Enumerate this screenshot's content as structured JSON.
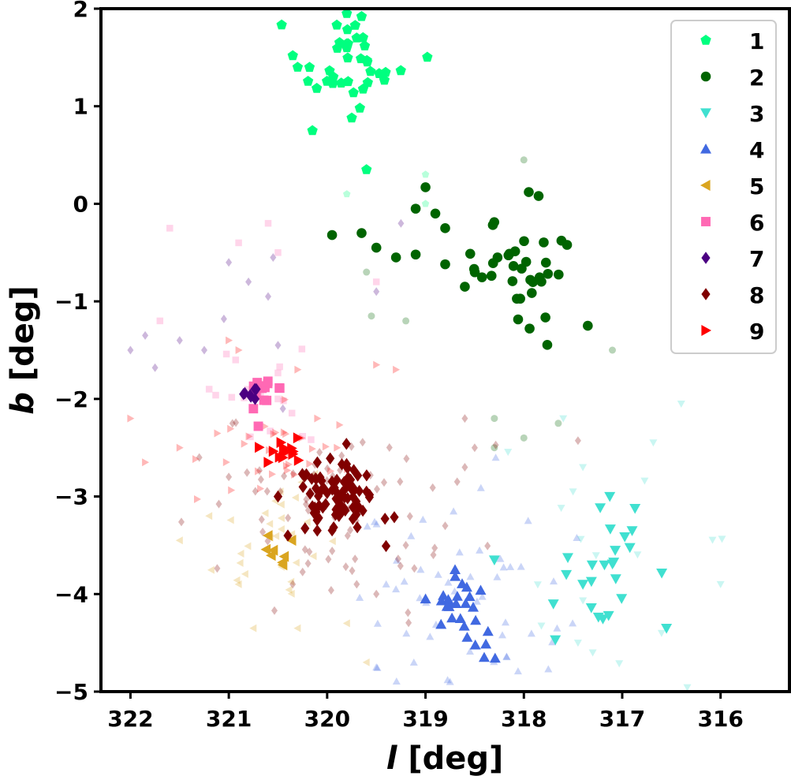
{
  "chart_data": {
    "type": "scatter",
    "title": "",
    "xlabel": "l [deg]",
    "xlabel_parts": {
      "var": "l",
      "unit": " [deg]"
    },
    "ylabel": "b [deg]",
    "ylabel_parts": {
      "var": "b",
      "unit": " [deg]"
    },
    "xlim": [
      322.3,
      315.3
    ],
    "ylim": [
      -5,
      2
    ],
    "x_inverted": true,
    "grid": false,
    "legend_position": "upper-right",
    "x_ticks": [
      {
        "value": 322,
        "label": "322"
      },
      {
        "value": 321,
        "label": "321"
      },
      {
        "value": 320,
        "label": "320"
      },
      {
        "value": 319,
        "label": "319"
      },
      {
        "value": 318,
        "label": "318"
      },
      {
        "value": 317,
        "label": "317"
      },
      {
        "value": 316,
        "label": "316"
      }
    ],
    "y_ticks": [
      {
        "value": 2,
        "label": "2"
      },
      {
        "value": 1,
        "label": "1"
      },
      {
        "value": 0,
        "label": "0"
      },
      {
        "value": -1,
        "label": "−1"
      },
      {
        "value": -2,
        "label": "−2"
      },
      {
        "value": -3,
        "label": "−3"
      },
      {
        "value": -4,
        "label": "−4"
      },
      {
        "value": -5,
        "label": "−5"
      }
    ],
    "series": [
      {
        "name": "1",
        "marker": "pentagon",
        "color": "#00ff7f",
        "center": [
          319.85,
          1.45
        ],
        "spread": [
          0.3,
          0.22
        ],
        "core_count": 34,
        "points": [
          [
            319.8,
            1.95
          ],
          [
            319.65,
            1.92
          ],
          [
            320.3,
            1.4
          ],
          [
            320.15,
            0.75
          ],
          [
            319.75,
            0.88
          ],
          [
            319.6,
            0.35
          ],
          [
            319.8,
            1.6
          ],
          [
            319.7,
            1.7
          ]
        ],
        "faint": [
          [
            319.8,
            0.1
          ],
          [
            319.0,
            0.3
          ],
          [
            318.9,
            -0.1
          ],
          [
            319.0,
            0.0
          ]
        ]
      },
      {
        "name": "2",
        "marker": "circle",
        "color": "#006400",
        "center": [
          318.05,
          -0.7
        ],
        "spread": [
          0.28,
          0.22
        ],
        "core_count": 34,
        "points": [
          [
            319.95,
            -0.32
          ],
          [
            319.65,
            -0.3
          ],
          [
            319.5,
            -0.45
          ],
          [
            319.3,
            -0.55
          ],
          [
            319.1,
            -0.05
          ],
          [
            319.0,
            0.17
          ],
          [
            318.9,
            -0.1
          ],
          [
            318.8,
            -0.25
          ],
          [
            319.1,
            -0.52
          ],
          [
            318.8,
            -0.62
          ],
          [
            318.6,
            -0.85
          ],
          [
            317.35,
            -1.25
          ],
          [
            317.85,
            0.08
          ],
          [
            317.95,
            0.12
          ]
        ],
        "faint": [
          [
            318.0,
            0.45
          ],
          [
            319.55,
            -1.15
          ],
          [
            319.2,
            -1.2
          ],
          [
            317.1,
            -1.5
          ],
          [
            318.3,
            -2.2
          ],
          [
            317.65,
            -2.25
          ],
          [
            318.0,
            -2.4
          ],
          [
            318.3,
            -2.5
          ],
          [
            319.6,
            -0.7
          ]
        ]
      },
      {
        "name": "3",
        "marker": "triangle-down",
        "color": "#40e0d0",
        "center": [
          317.05,
          -3.7
        ],
        "spread": [
          0.28,
          0.3
        ],
        "core_count": 22,
        "points": [
          [
            318.3,
            -3.65
          ],
          [
            317.7,
            -4.1
          ],
          [
            317.4,
            -3.9
          ],
          [
            316.55,
            -4.35
          ],
          [
            316.9,
            -3.35
          ]
        ],
        "faint": [
          [
            317.4,
            -2.7
          ],
          [
            317.5,
            -2.95
          ],
          [
            317.6,
            -2.2
          ],
          [
            316.4,
            -2.05
          ],
          [
            316.0,
            -3.9
          ],
          [
            317.45,
            -4.5
          ],
          [
            317.3,
            -4.6
          ],
          [
            316.6,
            -4.4
          ]
        ],
        "faint_count": 15
      },
      {
        "name": "4",
        "marker": "triangle-up",
        "color": "#4169e1",
        "center": [
          318.65,
          -4.25
        ],
        "spread": [
          0.18,
          0.22
        ],
        "core_count": 26,
        "points": [
          [
            319.0,
            -4.05
          ],
          [
            318.7,
            -3.75
          ]
        ],
        "faint": [
          [
            319.3,
            -3.95
          ],
          [
            319.4,
            -3.9
          ],
          [
            318.75,
            -4.9
          ],
          [
            319.5,
            -4.75
          ]
        ],
        "faint_count": 60
      },
      {
        "name": "5",
        "marker": "triangle-left",
        "color": "#daa520",
        "center": [
          320.5,
          -3.55
        ],
        "spread": [
          0.1,
          0.12
        ],
        "core_count": 6,
        "points": [
          [
            320.6,
            -3.4
          ],
          [
            320.45,
            -3.7
          ]
        ],
        "faint": [
          [
            321.5,
            -3.45
          ],
          [
            321.2,
            -3.2
          ],
          [
            320.9,
            -3.9
          ],
          [
            320.75,
            -4.35
          ],
          [
            320.3,
            -4.35
          ],
          [
            319.8,
            -4.3
          ],
          [
            319.6,
            -4.7
          ]
        ],
        "faint_count": 28
      },
      {
        "name": "6",
        "marker": "square",
        "color": "#ff69b4",
        "center": [
          320.65,
          -1.88
        ],
        "spread": [
          0.08,
          0.12
        ],
        "core_count": 14,
        "points": [
          [
            320.75,
            -2.1
          ],
          [
            320.7,
            -2.28
          ]
        ],
        "faint": [
          [
            321.6,
            -0.25
          ],
          [
            320.6,
            -0.2
          ],
          [
            320.9,
            -0.4
          ],
          [
            320.5,
            -0.5
          ],
          [
            321.2,
            -1.9
          ],
          [
            321.7,
            -1.2
          ],
          [
            320.5,
            -2.0
          ],
          [
            319.5,
            -0.8
          ]
        ],
        "faint_count": 18
      },
      {
        "name": "7",
        "marker": "diamond",
        "color": "#4b0082",
        "center": [
          320.78,
          -1.95
        ],
        "spread": [
          0.05,
          0.05
        ],
        "core_count": 5,
        "points": [
          [
            320.85,
            -1.95
          ],
          [
            320.72,
            -1.9
          ]
        ],
        "faint": [
          [
            322.0,
            -1.5
          ],
          [
            321.85,
            -1.35
          ],
          [
            321.75,
            -1.68
          ],
          [
            321.5,
            -1.4
          ],
          [
            321.25,
            -1.5
          ],
          [
            321.05,
            -1.18
          ],
          [
            321.0,
            -0.6
          ],
          [
            320.8,
            -0.8
          ],
          [
            320.55,
            -0.55
          ],
          [
            320.6,
            -0.95
          ],
          [
            320.5,
            -1.45
          ],
          [
            320.45,
            -2.1
          ],
          [
            319.25,
            -0.2
          ],
          [
            319.5,
            -0.9
          ]
        ]
      },
      {
        "name": "8",
        "marker": "diamond",
        "color": "#800000",
        "center": [
          319.9,
          -3.05
        ],
        "spread": [
          0.22,
          0.18
        ],
        "core_count": 80,
        "points": [
          [
            320.4,
            -3.4
          ],
          [
            320.5,
            -3.0
          ],
          [
            319.6,
            -2.95
          ],
          [
            320.1,
            -2.65
          ]
        ],
        "faint": [
          [
            321.3,
            -2.6
          ],
          [
            321.0,
            -2.8
          ],
          [
            320.35,
            -3.9
          ],
          [
            319.7,
            -3.9
          ],
          [
            319.5,
            -4.0
          ],
          [
            319.2,
            -3.5
          ],
          [
            318.8,
            -3.3
          ],
          [
            318.6,
            -2.2
          ],
          [
            318.5,
            -2.5
          ],
          [
            318.6,
            -2.7
          ]
        ],
        "faint_count": 70
      },
      {
        "name": "9",
        "marker": "triangle-right",
        "color": "#ff0000",
        "center": [
          320.45,
          -2.55
        ],
        "spread": [
          0.1,
          0.08
        ],
        "core_count": 12,
        "points": [
          [
            320.6,
            -2.65
          ],
          [
            320.3,
            -2.4
          ]
        ],
        "faint": [
          [
            322.0,
            -2.2
          ],
          [
            321.85,
            -2.65
          ],
          [
            321.5,
            -2.5
          ],
          [
            321.0,
            -1.4
          ],
          [
            320.9,
            -1.5
          ],
          [
            320.3,
            -1.7
          ],
          [
            319.5,
            -1.65
          ],
          [
            319.3,
            -1.7
          ],
          [
            320.1,
            -2.2
          ],
          [
            319.9,
            -2.5
          ]
        ],
        "faint_count": 35
      }
    ]
  }
}
